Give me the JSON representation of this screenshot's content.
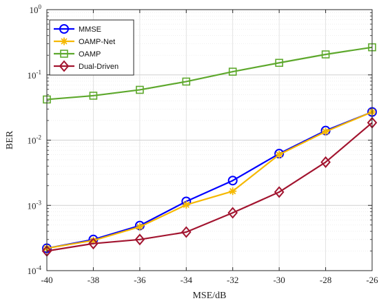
{
  "chart_data": {
    "type": "line",
    "xlabel": "MSE/dB",
    "ylabel": "BER",
    "x": [
      -40,
      -38,
      -36,
      -34,
      -32,
      -30,
      -28,
      -26
    ],
    "xlim": [
      -40,
      -26
    ],
    "ylim": [
      0.0001,
      1
    ],
    "yscale": "log",
    "x_tick_labels": [
      "-40",
      "-38",
      "-36",
      "-34",
      "-32",
      "-30",
      "-28",
      "-26"
    ],
    "y_tick_labels": [
      {
        "base": "10",
        "exp": "-4"
      },
      {
        "base": "10",
        "exp": "-3"
      },
      {
        "base": "10",
        "exp": "-2"
      },
      {
        "base": "10",
        "exp": "-1"
      },
      {
        "base": "10",
        "exp": "0"
      }
    ],
    "grid": true,
    "legend_position": "top-left",
    "series": [
      {
        "name": "MMSE",
        "color": "#0000ff",
        "marker": "circle",
        "values": [
          0.00022,
          0.0003,
          0.00049,
          0.00115,
          0.0024,
          0.0062,
          0.014,
          0.027
        ]
      },
      {
        "name": "OAMP-Net",
        "color": "#f5b800",
        "marker": "asterisk",
        "values": [
          0.00022,
          0.00029,
          0.00047,
          0.00102,
          0.00165,
          0.006,
          0.0135,
          0.027
        ]
      },
      {
        "name": "OAMP",
        "color": "#5da82c",
        "marker": "square",
        "values": [
          0.042,
          0.048,
          0.059,
          0.079,
          0.112,
          0.153,
          0.206,
          0.265
        ]
      },
      {
        "name": "Dual-Driven",
        "color": "#a2142f",
        "marker": "diamond",
        "values": [
          0.0002,
          0.00026,
          0.0003,
          0.00039,
          0.00077,
          0.0016,
          0.0046,
          0.0185
        ]
      }
    ]
  }
}
